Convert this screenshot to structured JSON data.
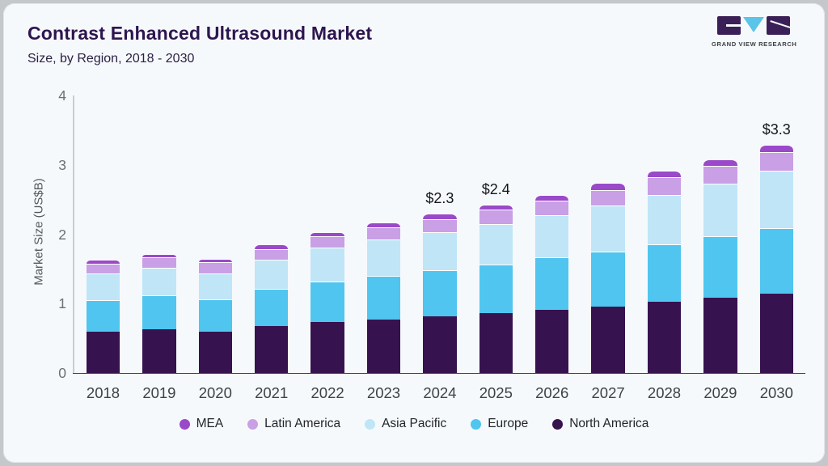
{
  "header": {
    "title": "Contrast Enhanced Ultrasound Market",
    "subtitle": "Size, by Region, 2018 - 2030",
    "logo_text": "GRAND VIEW RESEARCH"
  },
  "colors": {
    "card_bg": "#f6f9fc",
    "frame": "#c5c8ca",
    "title_text": "#2d164f",
    "axis_line": "#3c3f41",
    "y_axis_line": "#c9cdd1"
  },
  "chart_data": {
    "type": "bar",
    "stacked": true,
    "title": "Contrast Enhanced Ultrasound Market",
    "subtitle": "Size, by Region, 2018 - 2030",
    "xlabel": "",
    "ylabel": "Market Size (US$B)",
    "ylim": [
      0,
      4
    ],
    "y_ticks": [
      0,
      1,
      2,
      3,
      4
    ],
    "grid": false,
    "legend_position": "bottom",
    "categories": [
      "2018",
      "2019",
      "2020",
      "2021",
      "2022",
      "2023",
      "2024",
      "2025",
      "2026",
      "2027",
      "2028",
      "2029",
      "2030"
    ],
    "series": [
      {
        "name": "North America",
        "color": "#36124f",
        "values": [
          0.6,
          0.63,
          0.6,
          0.68,
          0.73,
          0.77,
          0.82,
          0.86,
          0.91,
          0.96,
          1.03,
          1.08,
          1.14
        ]
      },
      {
        "name": "Europe",
        "color": "#4fc5ef",
        "values": [
          0.45,
          0.49,
          0.46,
          0.53,
          0.59,
          0.63,
          0.66,
          0.7,
          0.76,
          0.79,
          0.82,
          0.89,
          0.95
        ]
      },
      {
        "name": "Asia Pacific",
        "color": "#bfe5f7",
        "values": [
          0.38,
          0.4,
          0.38,
          0.42,
          0.49,
          0.52,
          0.55,
          0.59,
          0.61,
          0.66,
          0.72,
          0.76,
          0.83
        ]
      },
      {
        "name": "Latin America",
        "color": "#c99fe5",
        "values": [
          0.15,
          0.15,
          0.16,
          0.15,
          0.16,
          0.18,
          0.19,
          0.21,
          0.21,
          0.23,
          0.25,
          0.26,
          0.26
        ]
      },
      {
        "name": "MEA",
        "color": "#9a49c9",
        "values": [
          0.05,
          0.05,
          0.05,
          0.07,
          0.06,
          0.07,
          0.08,
          0.07,
          0.08,
          0.1,
          0.1,
          0.09,
          0.11
        ]
      }
    ],
    "totals": [
      1.63,
      1.72,
      1.65,
      1.85,
      2.03,
      2.17,
      2.3,
      2.43,
      2.57,
      2.74,
      2.92,
      3.08,
      3.29
    ],
    "bar_labels": [
      "",
      "",
      "",
      "",
      "",
      "",
      "$2.3",
      "$2.4",
      "",
      "",
      "",
      "",
      "$3.3"
    ],
    "legend": [
      "MEA",
      "Latin America",
      "Asia Pacific",
      "Europe",
      "North America"
    ]
  }
}
